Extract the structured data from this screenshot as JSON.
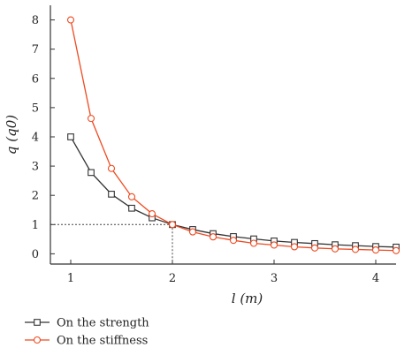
{
  "colors": {
    "strength": "#333333",
    "stiffness": "#ee4a21",
    "reference": "#444444"
  },
  "chart_data": {
    "type": "line",
    "xlabel": "l (m)",
    "ylabel": "q (q0)",
    "xlim": [
      0.8,
      4.2
    ],
    "ylim": [
      -0.35,
      8.5
    ],
    "xticks": [
      1,
      2,
      3,
      4
    ],
    "yticks": [
      0,
      1,
      2,
      3,
      4,
      5,
      6,
      7,
      8
    ],
    "grid": false,
    "legend_position": "bottom-left",
    "reference_point": {
      "x": 2,
      "y": 1
    },
    "series": [
      {
        "name": "On the strength",
        "marker": "square",
        "x": [
          1.0,
          1.2,
          1.4,
          1.6,
          1.8,
          2.0,
          2.2,
          2.4,
          2.6,
          2.8,
          3.0,
          3.2,
          3.4,
          3.6,
          3.8,
          4.0,
          4.2
        ],
        "y": [
          4.0,
          2.78,
          2.04,
          1.56,
          1.23,
          1.0,
          0.83,
          0.69,
          0.59,
          0.51,
          0.44,
          0.39,
          0.35,
          0.31,
          0.28,
          0.25,
          0.23
        ]
      },
      {
        "name": "On the stiffness",
        "marker": "circle",
        "x": [
          1.0,
          1.2,
          1.4,
          1.6,
          1.8,
          2.0,
          2.2,
          2.4,
          2.6,
          2.8,
          3.0,
          3.2,
          3.4,
          3.6,
          3.8,
          4.0,
          4.2
        ],
        "y": [
          8.0,
          4.63,
          2.92,
          1.95,
          1.37,
          1.0,
          0.75,
          0.58,
          0.46,
          0.36,
          0.3,
          0.24,
          0.2,
          0.17,
          0.15,
          0.13,
          0.11
        ]
      }
    ]
  }
}
